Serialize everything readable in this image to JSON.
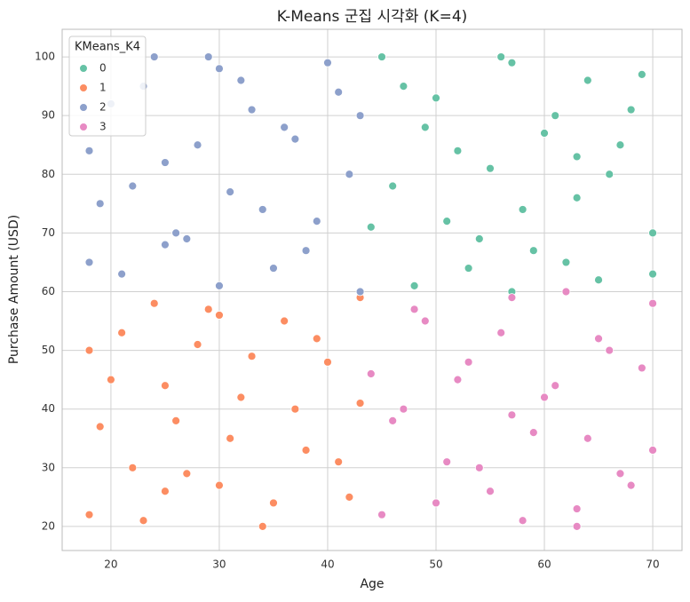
{
  "chart_data": {
    "type": "scatter",
    "title": "K-Means 군집 시각화 (K=4)",
    "x_label": "Age",
    "y_label": "Purchase Amount (USD)",
    "legend_title": "KMeans_K4",
    "legend_position": "upper left",
    "grid": true,
    "xlim": [
      15.5,
      72.7
    ],
    "ylim": [
      15.9,
      104.7
    ],
    "xticks": [
      20,
      30,
      40,
      50,
      60,
      70
    ],
    "yticks": [
      20,
      30,
      40,
      50,
      60,
      70,
      80,
      90,
      100
    ],
    "series": [
      {
        "name": "0",
        "color": "#66c2a5",
        "x": [
          45,
          47,
          49,
          51,
          53,
          55,
          57,
          59,
          61,
          63,
          65,
          67,
          69,
          70,
          46,
          48,
          50,
          52,
          54,
          56,
          58,
          60,
          62,
          64,
          66,
          68,
          44,
          70,
          57,
          63
        ],
        "values": [
          100,
          95,
          88,
          72,
          64,
          81,
          99,
          67,
          90,
          76,
          62,
          85,
          97,
          70,
          78,
          61,
          93,
          84,
          69,
          100,
          74,
          87,
          65,
          96,
          80,
          91,
          71,
          63,
          60,
          83
        ]
      },
      {
        "name": "1",
        "color": "#fc8d62",
        "x": [
          18,
          20,
          22,
          24,
          26,
          28,
          30,
          32,
          34,
          36,
          38,
          40,
          42,
          43,
          19,
          21,
          23,
          25,
          27,
          29,
          31,
          33,
          35,
          37,
          39,
          41,
          18,
          43,
          30,
          25
        ],
        "values": [
          22,
          45,
          30,
          58,
          38,
          51,
          27,
          42,
          20,
          55,
          33,
          48,
          25,
          59,
          37,
          53,
          21,
          44,
          29,
          57,
          35,
          49,
          24,
          40,
          52,
          31,
          50,
          41,
          56,
          26
        ]
      },
      {
        "name": "2",
        "color": "#8da0cb",
        "x": [
          18,
          20,
          22,
          24,
          26,
          28,
          30,
          32,
          34,
          36,
          38,
          40,
          42,
          43,
          19,
          21,
          23,
          25,
          27,
          29,
          31,
          33,
          35,
          37,
          39,
          41,
          18,
          43,
          30,
          25
        ],
        "values": [
          65,
          92,
          78,
          100,
          70,
          85,
          61,
          96,
          74,
          88,
          67,
          99,
          80,
          90,
          75,
          63,
          95,
          82,
          69,
          100,
          77,
          91,
          64,
          86,
          72,
          94,
          84,
          60,
          98,
          68
        ]
      },
      {
        "name": "3",
        "color": "#e78ac3",
        "x": [
          45,
          47,
          49,
          51,
          53,
          55,
          57,
          59,
          61,
          63,
          65,
          67,
          69,
          70,
          46,
          48,
          50,
          52,
          54,
          56,
          58,
          60,
          62,
          64,
          66,
          68,
          44,
          70,
          57,
          63
        ],
        "values": [
          22,
          40,
          55,
          31,
          48,
          26,
          59,
          36,
          44,
          20,
          52,
          29,
          47,
          33,
          38,
          57,
          24,
          45,
          30,
          53,
          21,
          42,
          60,
          35,
          50,
          27,
          46,
          58,
          39,
          23
        ]
      }
    ]
  }
}
